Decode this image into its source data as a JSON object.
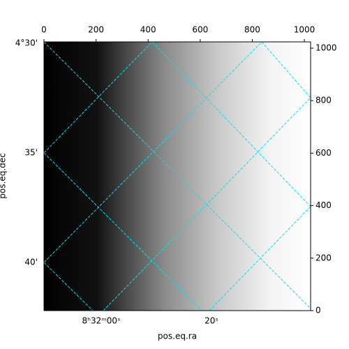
{
  "chart_data": {
    "type": "image",
    "xlabel": "pos.eq.ra",
    "ylabel": "pos.eq.dec",
    "xlim": [
      0,
      1024
    ],
    "ylim": [
      0,
      1024
    ],
    "xticks": [
      0,
      200,
      400,
      600,
      800,
      1000
    ],
    "yticks": [
      0,
      200,
      400,
      600,
      800,
      1000
    ],
    "ra_labels": [
      "8ʰ32ᵐ00ˢ",
      "20ˢ"
    ],
    "dec_labels": [
      "4°30'",
      "35'",
      "40'"
    ]
  }
}
